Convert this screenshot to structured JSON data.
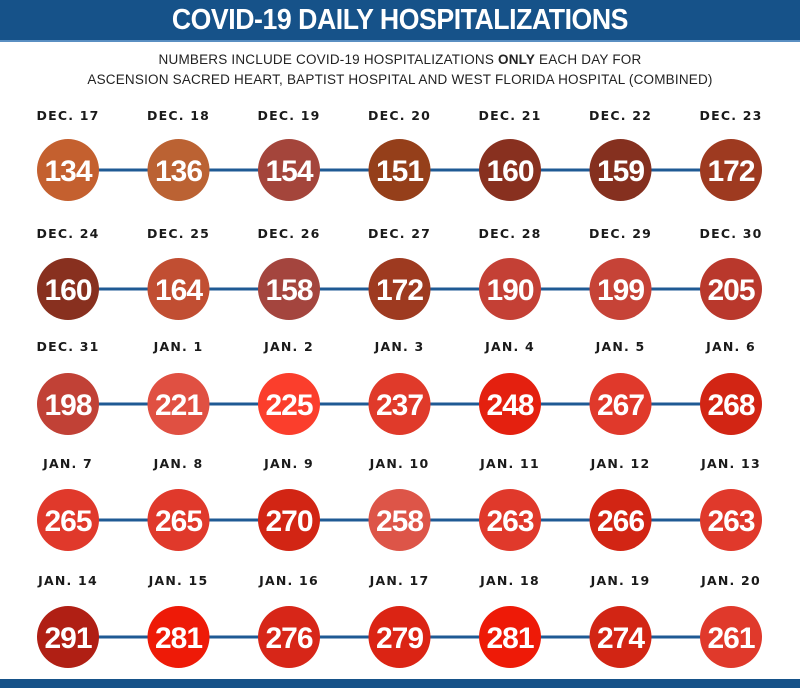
{
  "header": {
    "title": "COVID-19 DAILY HOSPITALIZATIONS"
  },
  "subtitle": {
    "line1_pre": "NUMBERS INCLUDE COVID-19 HOSPITALIZATIONS ",
    "line1_bold": "ONLY",
    "line1_post": " EACH DAY FOR",
    "line2": "ASCENSION SACRED HEART, BAPTIST HOSPITAL AND WEST FLORIDA HOSPITAL (COMBINED)"
  },
  "colors": {
    "header_bg": "#165289",
    "connector_line": "#1f5a94",
    "label_text": "#1a1a1a",
    "value_text": "#ffffff"
  },
  "chart_data": {
    "type": "table",
    "title": "COVID-19 DAILY HOSPITALIZATIONS",
    "subtitle": "NUMBERS INCLUDE COVID-19 HOSPITALIZATIONS ONLY EACH DAY FOR ASCENSION SACRED HEART, BAPTIST HOSPITAL AND WEST FLORIDA HOSPITAL (COMBINED)",
    "layout": "timeline rows of 7 days, circles connected by lines",
    "points_per_row": 7,
    "points": [
      {
        "date": "DEC. 17",
        "value": 134,
        "color": "#c4602f"
      },
      {
        "date": "DEC. 18",
        "value": 136,
        "color": "#bb6233"
      },
      {
        "date": "DEC. 19",
        "value": 154,
        "color": "#a4453b"
      },
      {
        "date": "DEC. 20",
        "value": 151,
        "color": "#953f1a"
      },
      {
        "date": "DEC. 21",
        "value": 160,
        "color": "#88301f"
      },
      {
        "date": "DEC. 22",
        "value": 159,
        "color": "#85301f"
      },
      {
        "date": "DEC. 23",
        "value": 172,
        "color": "#9e3a20"
      },
      {
        "date": "DEC. 24",
        "value": 160,
        "color": "#88301f"
      },
      {
        "date": "DEC. 25",
        "value": 164,
        "color": "#c14e32"
      },
      {
        "date": "DEC. 26",
        "value": 158,
        "color": "#a4453e"
      },
      {
        "date": "DEC. 27",
        "value": 172,
        "color": "#9e3a20"
      },
      {
        "date": "DEC. 28",
        "value": 190,
        "color": "#c44035"
      },
      {
        "date": "DEC. 29",
        "value": 199,
        "color": "#c64337"
      },
      {
        "date": "DEC. 30",
        "value": 205,
        "color": "#b9382c"
      },
      {
        "date": "DEC. 31",
        "value": 198,
        "color": "#c14136"
      },
      {
        "date": "JAN. 1",
        "value": 221,
        "color": "#e05042"
      },
      {
        "date": "JAN. 2",
        "value": 225,
        "color": "#fb3e2c"
      },
      {
        "date": "JAN. 3",
        "value": 237,
        "color": "#e03a2a"
      },
      {
        "date": "JAN. 4",
        "value": 248,
        "color": "#e4200f"
      },
      {
        "date": "JAN. 5",
        "value": 267,
        "color": "#e0392b"
      },
      {
        "date": "JAN. 6",
        "value": 268,
        "color": "#d22514"
      },
      {
        "date": "JAN. 7",
        "value": 265,
        "color": "#e0392b"
      },
      {
        "date": "JAN. 8",
        "value": 265,
        "color": "#e0392b"
      },
      {
        "date": "JAN. 9",
        "value": 270,
        "color": "#d22514"
      },
      {
        "date": "JAN. 10",
        "value": 258,
        "color": "#dd5548"
      },
      {
        "date": "JAN. 11",
        "value": 263,
        "color": "#e0392b"
      },
      {
        "date": "JAN. 12",
        "value": 266,
        "color": "#d22514"
      },
      {
        "date": "JAN. 13",
        "value": 263,
        "color": "#e0392b"
      },
      {
        "date": "JAN. 14",
        "value": 291,
        "color": "#b01f14"
      },
      {
        "date": "JAN. 15",
        "value": 281,
        "color": "#ee1a07"
      },
      {
        "date": "JAN. 16",
        "value": 276,
        "color": "#d72618"
      },
      {
        "date": "JAN. 17",
        "value": 279,
        "color": "#db2414"
      },
      {
        "date": "JAN. 18",
        "value": 281,
        "color": "#ee1a07"
      },
      {
        "date": "JAN. 19",
        "value": 274,
        "color": "#d22514"
      },
      {
        "date": "JAN. 20",
        "value": 261,
        "color": "#e0392b"
      }
    ]
  }
}
